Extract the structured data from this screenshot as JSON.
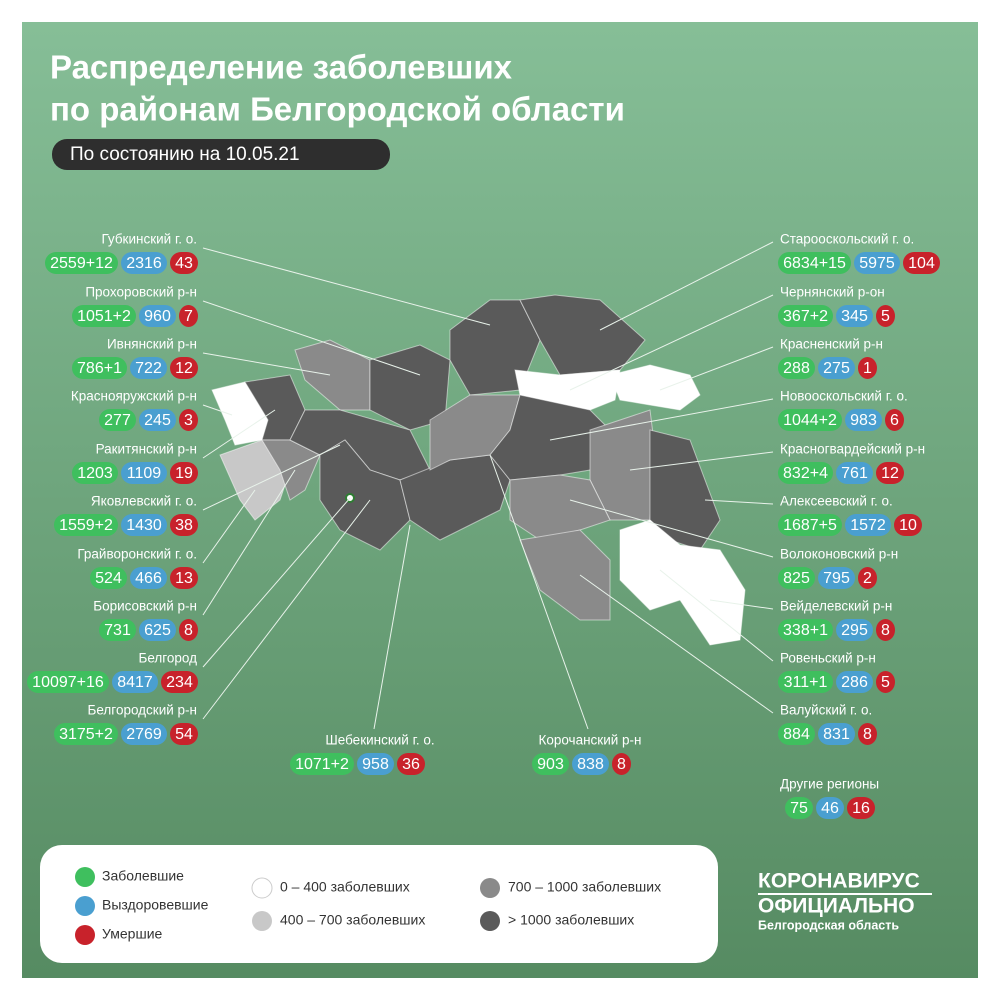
{
  "header": {
    "title_line1": "Распределение заболевших",
    "title_line2": "по районам Белгородской области",
    "date": "По состоянию на 10.05.21"
  },
  "districts": [
    {
      "name": "Губкинский г. о.",
      "cases": "2559+12",
      "recovered": 2316,
      "deaths": 43
    },
    {
      "name": "Прохоровский р-н",
      "cases": "1051+2",
      "recovered": 960,
      "deaths": 7
    },
    {
      "name": "Ивнянский р-н",
      "cases": "786+1",
      "recovered": 722,
      "deaths": 12
    },
    {
      "name": "Краснояружский р-н",
      "cases": 277,
      "recovered": 245,
      "deaths": 3
    },
    {
      "name": "Ракитянский р-н",
      "cases": 1203,
      "recovered": 1109,
      "deaths": 19
    },
    {
      "name": "Яковлевский г. о.",
      "cases": "1559+2",
      "recovered": 1430,
      "deaths": 38
    },
    {
      "name": "Грайворонский г. о.",
      "cases": 524,
      "recovered": 466,
      "deaths": 13
    },
    {
      "name": "Борисовский р-н",
      "cases": 731,
      "recovered": 625,
      "deaths": 8
    },
    {
      "name": "Белгород",
      "cases": "10097+16",
      "recovered": 8417,
      "deaths": 234
    },
    {
      "name": "Белгородский р-н",
      "cases": "3175+2",
      "recovered": 2769,
      "deaths": 54
    },
    {
      "name": "Старооскольский г. о.",
      "cases": "6834+15",
      "recovered": 5975,
      "deaths": 104
    },
    {
      "name": "Чернянский р-он",
      "cases": "367+2",
      "recovered": 345,
      "deaths": 5
    },
    {
      "name": "Красненский р-н",
      "cases": 288,
      "recovered": 275,
      "deaths": 1
    },
    {
      "name": "Новооскольский г. о.",
      "cases": "1044+2",
      "recovered": 983,
      "deaths": 6
    },
    {
      "name": "Красногвардейский р-н",
      "cases": "832+4",
      "recovered": 761,
      "deaths": 12
    },
    {
      "name": "Алексеевский г. о.",
      "cases": "1687+5",
      "recovered": 1572,
      "deaths": 10
    },
    {
      "name": "Волоконовский р-н",
      "cases": 825,
      "recovered": 795,
      "deaths": 2
    },
    {
      "name": "Вейделевский р-н",
      "cases": "338+1",
      "recovered": 295,
      "deaths": 8
    },
    {
      "name": "Ровеньский р-н",
      "cases": "311+1",
      "recovered": 286,
      "deaths": 5
    },
    {
      "name": "Валуйский г. о.",
      "cases": 884,
      "recovered": 831,
      "deaths": 8
    },
    {
      "name": "Шебекинский г. о.",
      "cases": "1071+2",
      "recovered": 958,
      "deaths": 36
    },
    {
      "name": "Корочанский р-н",
      "cases": 903,
      "recovered": 838,
      "deaths": 8
    },
    {
      "name": "Другие регионы",
      "cases": 75,
      "recovered": 46,
      "deaths": 16
    }
  ],
  "legend": {
    "cases": "Заболевшие",
    "recovered": "Выздоровевшие",
    "deaths": "Умершие",
    "range1": "0 – 400 заболевших",
    "range2": "400 – 700 заболевших",
    "range3": "700 – 1000 заболевших",
    "range4": "> 1000 заболевших"
  },
  "logo": {
    "line1": "КОРОНАВИРУС",
    "line2": "ОФИЦИАЛЬНО",
    "line3": "Белгородская область"
  }
}
